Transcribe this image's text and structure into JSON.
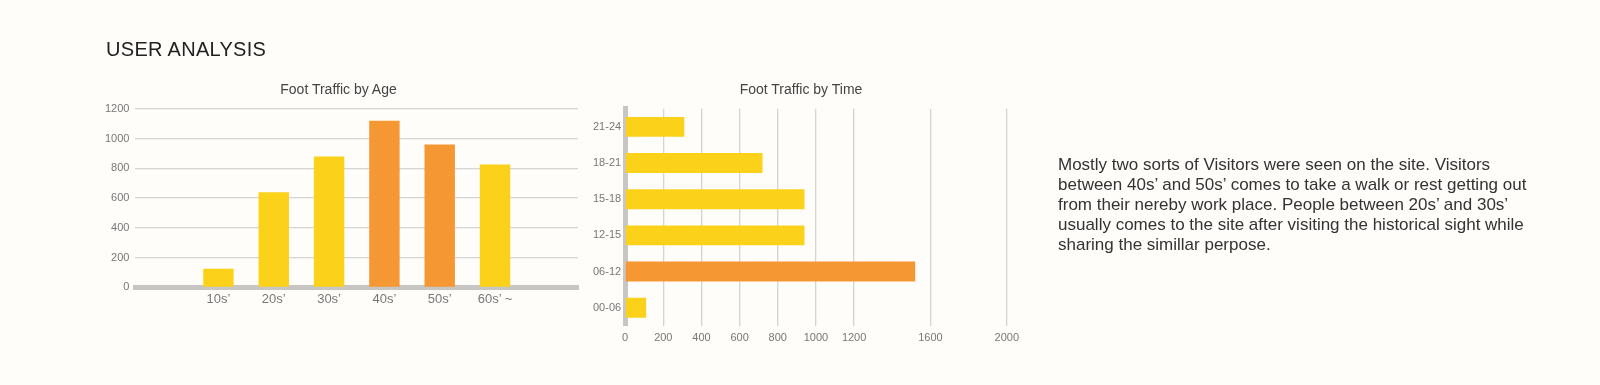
{
  "chart_data": [
    {
      "type": "other",
      "title": "USER ANALYSIS"
    },
    {
      "type": "bar",
      "title": "Foot Traffic by Age",
      "categories": [
        null,
        "10s’",
        "20s’",
        "30s’",
        "40s’",
        "50s’",
        "60s’ ~",
        null
      ],
      "values": [
        null,
        125,
        640,
        880,
        1120,
        960,
        825,
        null
      ],
      "colors": [
        "#fbd11a",
        "#fbd11a",
        "#fbd11a",
        "#fbd11a",
        "#f59733",
        "#f59733",
        "#fbd11a",
        "#fbd11a"
      ],
      "ylim": [
        0,
        1200
      ],
      "yticks": [
        0,
        200,
        400,
        600,
        800,
        1000,
        1200
      ],
      "grid": "y"
    },
    {
      "type": "bar",
      "orientation": "horizontal",
      "title": "Foot Traffic by Time",
      "categories": [
        "21-24",
        "18-21",
        "15-18",
        "12-15",
        "06-12",
        "00-06"
      ],
      "values": [
        310,
        720,
        940,
        940,
        1520,
        110
      ],
      "colors": [
        "#fbd11a",
        "#fbd11a",
        "#fbd11a",
        "#fbd11a",
        "#f59733",
        "#fbd11a"
      ],
      "xlim": [
        0,
        2000
      ],
      "xticks": [
        0,
        200,
        400,
        600,
        800,
        1000,
        1200,
        1600,
        2000
      ],
      "grid": "x"
    },
    {
      "type": "other",
      "annotations": [
        "Mostly two sorts of Visitors were seen on the site. Visitors between 40s’ and 50s’ comes to take a walk or rest getting out from their nereby work place. People between 20s’ and 30s’ usually comes to the site after visiting the historical sight while sharing the simillar perpose."
      ]
    }
  ]
}
